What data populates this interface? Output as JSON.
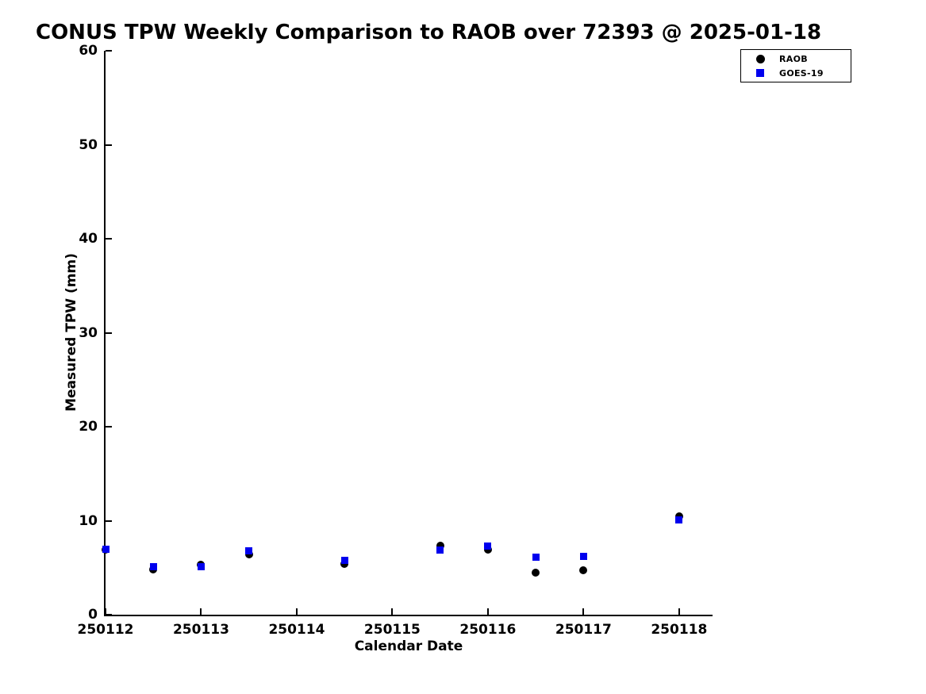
{
  "chart_data": {
    "type": "scatter",
    "title": "CONUS TPW Weekly Comparison to RAOB over 72393 @ 2025-01-18",
    "xlabel": "Calendar Date",
    "ylabel": "Measured TPW (mm)",
    "xlim": [
      250112,
      250118.35
    ],
    "ylim": [
      0,
      60
    ],
    "x_ticks": [
      250112,
      250113,
      250114,
      250115,
      250116,
      250117,
      250118
    ],
    "x_tick_labels": [
      "250112",
      "250113",
      "250114",
      "250115",
      "250116",
      "250117",
      "250118"
    ],
    "y_ticks": [
      0,
      10,
      20,
      30,
      40,
      50,
      60
    ],
    "y_tick_labels": [
      "0",
      "10",
      "20",
      "30",
      "40",
      "50",
      "60"
    ],
    "grid": false,
    "legend_position": "top-right-outside",
    "series": [
      {
        "name": "RAOB",
        "marker": "circle",
        "color": "#000000",
        "x": [
          250112,
          250112.5,
          250113,
          250113.5,
          250114.5,
          250115.5,
          250116,
          250116.5,
          250117,
          250118
        ],
        "y": [
          6.9,
          4.8,
          5.3,
          6.4,
          5.4,
          7.3,
          6.9,
          4.5,
          4.7,
          10.5
        ]
      },
      {
        "name": "GOES-19",
        "marker": "square",
        "color": "#0000ee",
        "x": [
          250112,
          250112.5,
          250113,
          250113.5,
          250114.5,
          250115.5,
          250116,
          250116.5,
          250117,
          250118
        ],
        "y": [
          7.0,
          5.1,
          5.1,
          6.8,
          5.8,
          6.9,
          7.3,
          6.1,
          6.2,
          10.1
        ]
      }
    ]
  }
}
